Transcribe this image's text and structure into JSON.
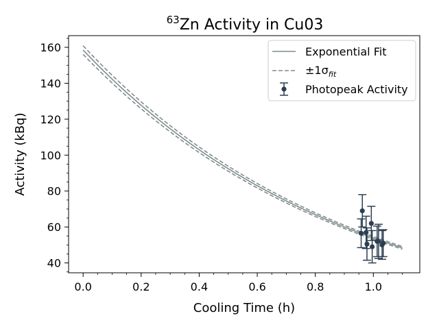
{
  "chart_data": {
    "type": "scatter",
    "title": {
      "sup": "63",
      "main": "Zn Activity in Cu03"
    },
    "xlabel": "Cooling Time (h)",
    "ylabel": "Activity (kBq)",
    "xlim": [
      -0.05,
      1.16
    ],
    "ylim": [
      34.5,
      166.5
    ],
    "xticks": [
      0.0,
      0.2,
      0.4,
      0.6,
      0.8,
      1.0
    ],
    "xtick_labels": [
      "0.0",
      "0.2",
      "0.4",
      "0.6",
      "0.8",
      "1.0"
    ],
    "yticks": [
      40,
      60,
      80,
      100,
      120,
      140,
      160
    ],
    "ytick_labels": [
      "40",
      "60",
      "80",
      "100",
      "120",
      "140",
      "160"
    ],
    "grid": false,
    "legend_position": "top-right",
    "legend": [
      {
        "label": "Exponential Fit",
        "kind": "solid-line"
      },
      {
        "label": "±1σ",
        "sub": "fit",
        "kind": "dashed-line"
      },
      {
        "label": "Photopeak Activity",
        "kind": "errorbar-point"
      }
    ],
    "fit": {
      "x_range": [
        0.0,
        1.1
      ],
      "A0": 158.5,
      "half_life_h": 0.6427,
      "A0_sigma": 2.4,
      "color": "#7f8c8d"
    },
    "points": {
      "color": "#2c3e50",
      "x": [
        0.958,
        0.962,
        0.975,
        0.978,
        0.993,
        0.996,
        1.013,
        1.018,
        1.03,
        1.034
      ],
      "y": [
        56.5,
        69.0,
        57.0,
        50.5,
        62.0,
        49.0,
        52.0,
        52.0,
        50.0,
        51.0
      ],
      "yerr": [
        8.0,
        9.0,
        9.0,
        9.0,
        9.5,
        9.0,
        8.5,
        9.5,
        8.0,
        7.5
      ]
    }
  }
}
